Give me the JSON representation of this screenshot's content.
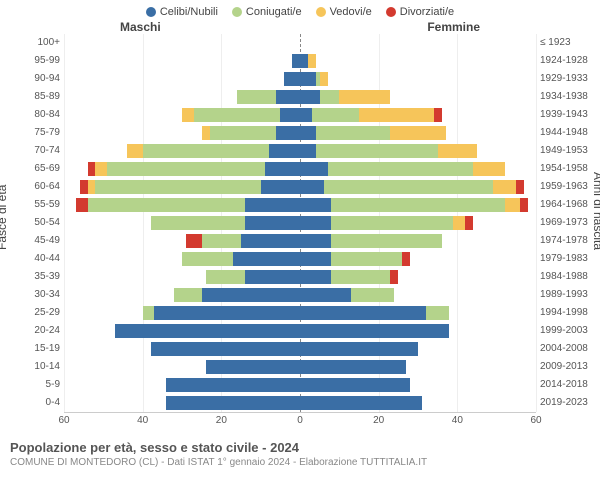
{
  "legend": [
    {
      "label": "Celibi/Nubili",
      "color": "#3a6ea5"
    },
    {
      "label": "Coniugati/e",
      "color": "#b4d38b"
    },
    {
      "label": "Vedovi/e",
      "color": "#f6c55a"
    },
    {
      "label": "Divorziati/e",
      "color": "#d33a2f"
    }
  ],
  "headers": {
    "male": "Maschi",
    "female": "Femmine"
  },
  "axis_labels": {
    "left": "Fasce di età",
    "right": "Anni di nascita"
  },
  "x_axis": {
    "max": 60,
    "ticks": [
      60,
      40,
      20,
      0,
      20,
      40,
      60
    ]
  },
  "colors": {
    "background": "#ffffff",
    "grid": "#eeeeee",
    "text": "#555555"
  },
  "title": "Popolazione per età, sesso e stato civile - 2024",
  "subtitle": "COMUNE DI MONTEDORO (CL) - Dati ISTAT 1° gennaio 2024 - Elaborazione TUTTITALIA.IT",
  "rows": [
    {
      "age": "100+",
      "birth": "≤ 1923",
      "m": [
        0,
        0,
        0,
        0
      ],
      "f": [
        0,
        0,
        0,
        0
      ]
    },
    {
      "age": "95-99",
      "birth": "1924-1928",
      "m": [
        2,
        0,
        0,
        0
      ],
      "f": [
        2,
        0,
        2,
        0
      ]
    },
    {
      "age": "90-94",
      "birth": "1929-1933",
      "m": [
        4,
        0,
        0,
        0
      ],
      "f": [
        4,
        1,
        2,
        0
      ]
    },
    {
      "age": "85-89",
      "birth": "1934-1938",
      "m": [
        6,
        10,
        0,
        0
      ],
      "f": [
        5,
        5,
        13,
        0
      ]
    },
    {
      "age": "80-84",
      "birth": "1939-1943",
      "m": [
        5,
        22,
        3,
        0
      ],
      "f": [
        3,
        12,
        19,
        2
      ]
    },
    {
      "age": "75-79",
      "birth": "1944-1948",
      "m": [
        6,
        17,
        2,
        0
      ],
      "f": [
        4,
        19,
        14,
        0
      ]
    },
    {
      "age": "70-74",
      "birth": "1949-1953",
      "m": [
        8,
        32,
        4,
        0
      ],
      "f": [
        4,
        31,
        10,
        0
      ]
    },
    {
      "age": "65-69",
      "birth": "1954-1958",
      "m": [
        9,
        40,
        3,
        2
      ],
      "f": [
        7,
        37,
        8,
        0
      ]
    },
    {
      "age": "60-64",
      "birth": "1959-1963",
      "m": [
        10,
        42,
        2,
        2
      ],
      "f": [
        6,
        43,
        6,
        2
      ]
    },
    {
      "age": "55-59",
      "birth": "1964-1968",
      "m": [
        14,
        40,
        0,
        3
      ],
      "f": [
        8,
        44,
        4,
        2
      ]
    },
    {
      "age": "50-54",
      "birth": "1969-1973",
      "m": [
        14,
        24,
        0,
        0
      ],
      "f": [
        8,
        31,
        3,
        2
      ]
    },
    {
      "age": "45-49",
      "birth": "1974-1978",
      "m": [
        15,
        10,
        0,
        4
      ],
      "f": [
        8,
        28,
        0,
        0
      ]
    },
    {
      "age": "40-44",
      "birth": "1979-1983",
      "m": [
        17,
        13,
        0,
        0
      ],
      "f": [
        8,
        18,
        0,
        2
      ]
    },
    {
      "age": "35-39",
      "birth": "1984-1988",
      "m": [
        14,
        10,
        0,
        0
      ],
      "f": [
        8,
        15,
        0,
        2
      ]
    },
    {
      "age": "30-34",
      "birth": "1989-1993",
      "m": [
        25,
        7,
        0,
        0
      ],
      "f": [
        13,
        11,
        0,
        0
      ]
    },
    {
      "age": "25-29",
      "birth": "1994-1998",
      "m": [
        37,
        3,
        0,
        0
      ],
      "f": [
        32,
        6,
        0,
        0
      ]
    },
    {
      "age": "20-24",
      "birth": "1999-2003",
      "m": [
        47,
        0,
        0,
        0
      ],
      "f": [
        38,
        0,
        0,
        0
      ]
    },
    {
      "age": "15-19",
      "birth": "2004-2008",
      "m": [
        38,
        0,
        0,
        0
      ],
      "f": [
        30,
        0,
        0,
        0
      ]
    },
    {
      "age": "10-14",
      "birth": "2009-2013",
      "m": [
        24,
        0,
        0,
        0
      ],
      "f": [
        27,
        0,
        0,
        0
      ]
    },
    {
      "age": "5-9",
      "birth": "2014-2018",
      "m": [
        34,
        0,
        0,
        0
      ],
      "f": [
        28,
        0,
        0,
        0
      ]
    },
    {
      "age": "0-4",
      "birth": "2019-2023",
      "m": [
        34,
        0,
        0,
        0
      ],
      "f": [
        31,
        0,
        0,
        0
      ]
    }
  ]
}
